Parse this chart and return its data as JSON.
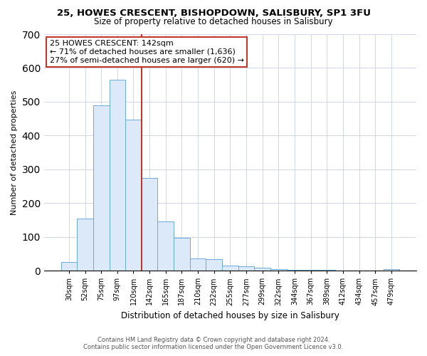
{
  "title": "25, HOWES CRESCENT, BISHOPDOWN, SALISBURY, SP1 3FU",
  "subtitle": "Size of property relative to detached houses in Salisbury",
  "xlabel": "Distribution of detached houses by size in Salisbury",
  "ylabel": "Number of detached properties",
  "bar_labels": [
    "30sqm",
    "52sqm",
    "75sqm",
    "97sqm",
    "120sqm",
    "142sqm",
    "165sqm",
    "187sqm",
    "210sqm",
    "232sqm",
    "255sqm",
    "277sqm",
    "299sqm",
    "322sqm",
    "344sqm",
    "367sqm",
    "389sqm",
    "412sqm",
    "434sqm",
    "457sqm",
    "479sqm"
  ],
  "bar_heights": [
    25,
    155,
    490,
    565,
    448,
    275,
    145,
    98,
    36,
    35,
    14,
    12,
    8,
    5,
    3,
    3,
    2,
    1,
    0,
    0,
    4
  ],
  "bar_color": "#dce9f8",
  "bar_edge_color": "#6aabdb",
  "vline_color": "#c0392b",
  "annotation_title": "25 HOWES CRESCENT: 142sqm",
  "annotation_line1": "← 71% of detached houses are smaller (1,636)",
  "annotation_line2": "27% of semi-detached houses are larger (620) →",
  "annotation_box_color": "#ffffff",
  "annotation_box_edge_color": "#c0392b",
  "ylim": [
    0,
    700
  ],
  "yticks": [
    0,
    100,
    200,
    300,
    400,
    500,
    600,
    700
  ],
  "footer_line1": "Contains HM Land Registry data © Crown copyright and database right 2024.",
  "footer_line2": "Contains public sector information licensed under the Open Government Licence v3.0.",
  "background_color": "#ffffff",
  "grid_color": "#d0d8e8"
}
